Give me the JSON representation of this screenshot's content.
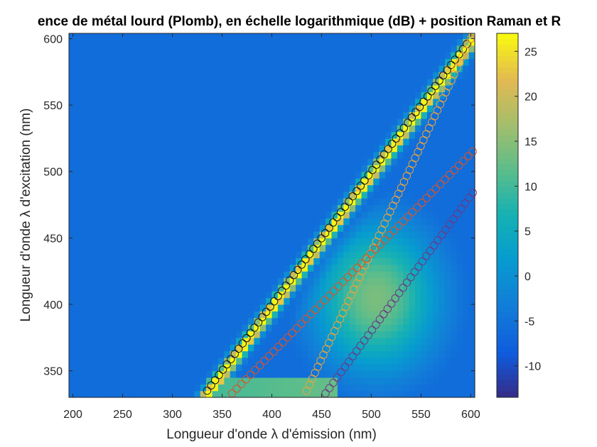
{
  "chart_data": {
    "type": "heatmap",
    "title": "ence de métal lourd (Plomb), en échelle logarithmique (dB) + position Raman et R",
    "xlabel": "Longueur d'onde λ d'émission (nm)",
    "ylabel": "Longueur d'onde λ d'excitation (nm)",
    "xlim": [
      196,
      604
    ],
    "ylim": [
      330,
      604
    ],
    "xticks": [
      200,
      250,
      300,
      350,
      400,
      450,
      500,
      550,
      600
    ],
    "yticks": [
      350,
      400,
      450,
      500,
      550,
      600
    ],
    "colorbar": {
      "ticks": [
        -10,
        -5,
        0,
        5,
        10,
        15,
        20,
        25
      ],
      "range": [
        -13.5,
        27
      ],
      "colormap": "parula"
    },
    "heatmap_description": "Fluorescence map: background around -8 dB; a bright Rayleigh band (about 27 dB) along emission = excitation; a broad fluorescence region (10 to 15 dB) centred near emission 500 nm, excitation 400 nm; a band near excitation 335 nm at emission 330 to 460 nm.",
    "series": [
      {
        "name": "",
        "color": "#1a1a1a",
        "x": [
          335,
          600
        ],
        "y": [
          335,
          600
        ]
      },
      {
        "name": "",
        "color": "#e8a33c",
        "x": [
          435,
          600
        ],
        "y": [
          335,
          600
        ]
      },
      {
        "name": "",
        "color": "#d9542a",
        "x": [
          360,
          602
        ],
        "y": [
          333,
          515
        ]
      },
      {
        "name": "",
        "color": "#6b3a86",
        "x": [
          454,
          602
        ],
        "y": [
          333,
          484
        ]
      }
    ]
  }
}
